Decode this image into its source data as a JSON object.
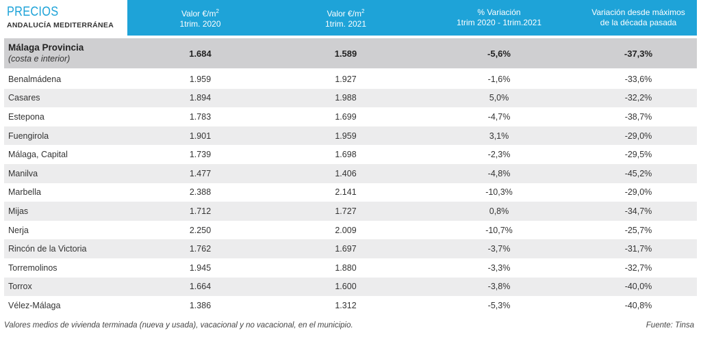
{
  "brand": {
    "title": "PRECIOS",
    "subtitle": "ANDALUCÍA MEDITERRÁNEA"
  },
  "columns": [
    {
      "line1": "Valor €/m",
      "sup": "2",
      "line2": "1trim. 2020"
    },
    {
      "line1": "Valor €/m",
      "sup": "2",
      "line2": "1trim. 2021"
    },
    {
      "line1": "% Variación",
      "sup": "",
      "line2": "1trim 2020 - 1trim.2021"
    },
    {
      "line1": "Variación desde máximos",
      "sup": "",
      "line2": "de la década pasada"
    }
  ],
  "province": {
    "name": "Málaga Provincia",
    "note": "(costa e interior)",
    "values": [
      "1.684",
      "1.589",
      "-5,6%",
      "-37,3%"
    ]
  },
  "rows": [
    {
      "name": "Benalmádena",
      "values": [
        "1.959",
        "1.927",
        "-1,6%",
        "-33,6%"
      ]
    },
    {
      "name": "Casares",
      "values": [
        "1.894",
        "1.988",
        "5,0%",
        "-32,2%"
      ]
    },
    {
      "name": "Estepona",
      "values": [
        "1.783",
        "1.699",
        "-4,7%",
        "-38,7%"
      ]
    },
    {
      "name": "Fuengirola",
      "values": [
        "1.901",
        "1.959",
        "3,1%",
        "-29,0%"
      ]
    },
    {
      "name": "Málaga, Capital",
      "values": [
        "1.739",
        "1.698",
        "-2,3%",
        "-29,5%"
      ]
    },
    {
      "name": "Manilva",
      "values": [
        "1.477",
        "1.406",
        "-4,8%",
        "-45,2%"
      ]
    },
    {
      "name": "Marbella",
      "values": [
        "2.388",
        "2.141",
        "-10,3%",
        "-29,0%"
      ]
    },
    {
      "name": "Mijas",
      "values": [
        "1.712",
        "1.727",
        "0,8%",
        "-34,7%"
      ]
    },
    {
      "name": "Nerja",
      "values": [
        "2.250",
        "2.009",
        "-10,7%",
        "-25,7%"
      ]
    },
    {
      "name": "Rincón de la Victoria",
      "values": [
        "1.762",
        "1.697",
        "-3,7%",
        "-31,7%"
      ]
    },
    {
      "name": "Torremolinos",
      "values": [
        "1.945",
        "1.880",
        "-3,3%",
        "-32,7%"
      ]
    },
    {
      "name": "Torrox",
      "values": [
        "1.664",
        "1.600",
        "-3,8%",
        "-40,0%"
      ]
    },
    {
      "name": "Vélez-Málaga",
      "values": [
        "1.386",
        "1.312",
        "-5,3%",
        "-40,8%"
      ]
    }
  ],
  "footer": {
    "note": "Valores medios de vivienda terminada (nueva y usada), vacacional y no vacacional, en el municipio.",
    "source": "Fuente: Tinsa"
  },
  "colors": {
    "header": "#1ea3d8",
    "province_row": "#cfcfd1",
    "alt_row": "#ececed"
  }
}
